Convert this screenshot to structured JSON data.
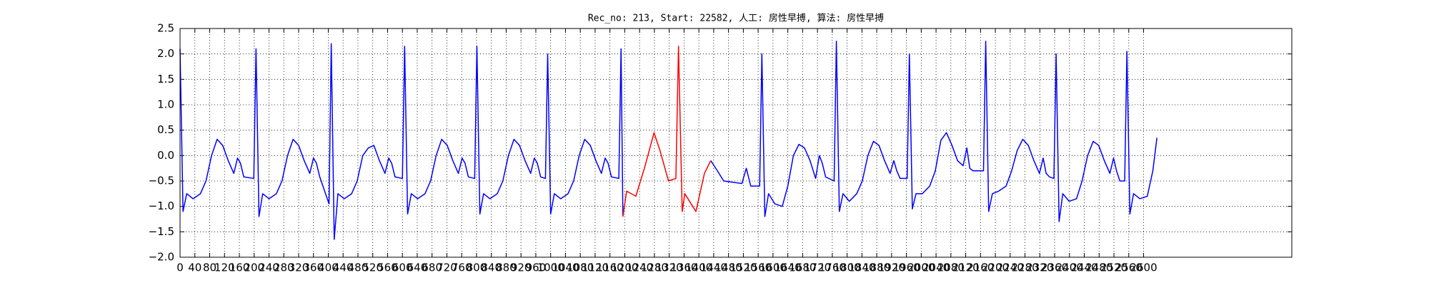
{
  "chart_data": {
    "type": "line",
    "title": "Rec_no: 213, Start: 22582, 人工: 房性早搏, 算法: 房性早搏",
    "xlim": [
      0,
      3000
    ],
    "ylim": [
      -2,
      2.5
    ],
    "grid": true,
    "xticks": [
      0,
      40,
      80,
      120,
      160,
      200,
      240,
      280,
      320,
      360,
      400,
      440,
      480,
      520,
      560,
      600,
      640,
      680,
      720,
      760,
      800,
      840,
      880,
      920,
      960,
      1000,
      1040,
      1080,
      1120,
      1160,
      1200,
      1240,
      1280,
      1320,
      1360,
      1400,
      1440,
      1480,
      1520,
      1560,
      1600,
      1640,
      1680,
      1720,
      1760,
      1800,
      1840,
      1880,
      1920,
      1960,
      2000,
      2040,
      2080,
      2120,
      2160,
      2200,
      2240,
      2280,
      2320,
      2360,
      2400,
      2440,
      2480,
      2520,
      2560,
      2600
    ],
    "yticks": [
      {
        "value": -2,
        "label": "−2.0"
      },
      {
        "value": -1.5,
        "label": "−1.5"
      },
      {
        "value": -1,
        "label": "−1.0"
      },
      {
        "value": -0.5,
        "label": "−0.5"
      },
      {
        "value": 0,
        "label": "0.0"
      },
      {
        "value": 0.5,
        "label": "0.5"
      },
      {
        "value": 1,
        "label": "1.0"
      },
      {
        "value": 1.5,
        "label": "1.5"
      },
      {
        "value": 2,
        "label": "2.0"
      },
      {
        "value": 2.5,
        "label": "2.5"
      }
    ],
    "series": [
      {
        "color": "#0000ff",
        "x": [
          0,
          8,
          18,
          35,
          55,
          70,
          85,
          100,
          115,
          130,
          145,
          155,
          163,
          172,
          199,
          205,
          213,
          223,
          240,
          260,
          275,
          290,
          305,
          320,
          335,
          350,
          360,
          368,
          377,
          402,
          408,
          416,
          426,
          443,
          463,
          478,
          493,
          508,
          523,
          538,
          553,
          563,
          571,
          580,
          600,
          606,
          614,
          624,
          641,
          661,
          676,
          691,
          706,
          721,
          736,
          751,
          761,
          769,
          778,
          795,
          801,
          809,
          819,
          836,
          856,
          871,
          886,
          901,
          916,
          931,
          946,
          956,
          964,
          973,
          986,
          992,
          1000,
          1010,
          1027,
          1047,
          1062,
          1077,
          1092,
          1107,
          1122,
          1137,
          1147,
          1155,
          1164,
          1184,
          1190,
          1195,
          1300,
          1432,
          1450,
          1467,
          1516,
          1528,
          1540,
          1564,
          1570,
          1578,
          1588,
          1605,
          1625,
          1640,
          1655,
          1670,
          1685,
          1700,
          1715,
          1725,
          1733,
          1742,
          1765,
          1771,
          1779,
          1789,
          1806,
          1826,
          1841,
          1856,
          1871,
          1886,
          1901,
          1916,
          1926,
          1934,
          1943,
          1962,
          1968,
          1976,
          1986,
          2003,
          2023,
          2038,
          2053,
          2068,
          2083,
          2098,
          2113,
          2123,
          2131,
          2140,
          2168,
          2174,
          2182,
          2192,
          2209,
          2229,
          2244,
          2259,
          2274,
          2289,
          2304,
          2319,
          2329,
          2337,
          2346,
          2358,
          2364,
          2372,
          2382,
          2399,
          2419,
          2434,
          2449,
          2464,
          2479,
          2494,
          2509,
          2519,
          2527,
          2536,
          2549,
          2555,
          2563,
          2573,
          2590,
          2610,
          2625,
          2636
        ],
        "values": [
          2.1,
          -1.1,
          -0.75,
          -0.85,
          -0.75,
          -0.5,
          0,
          0.32,
          0.2,
          -0.1,
          -0.35,
          -0.05,
          -0.15,
          -0.42,
          -0.45,
          2.1,
          -1.2,
          -0.75,
          -0.85,
          -0.75,
          -0.5,
          0,
          0.32,
          0.2,
          -0.1,
          -0.35,
          -0.05,
          -0.15,
          -0.42,
          -0.95,
          2.2,
          -1.65,
          -0.75,
          -0.85,
          -0.75,
          -0.5,
          0,
          0.15,
          0.2,
          -0.1,
          -0.35,
          -0.05,
          -0.15,
          -0.42,
          -0.45,
          2.15,
          -1.15,
          -0.75,
          -0.85,
          -0.75,
          -0.5,
          0,
          0.32,
          0.2,
          -0.1,
          -0.35,
          -0.05,
          -0.15,
          -0.42,
          -0.45,
          2.15,
          -1.15,
          -0.75,
          -0.85,
          -0.75,
          -0.5,
          0,
          0.32,
          0.2,
          -0.1,
          -0.35,
          -0.05,
          -0.15,
          -0.42,
          -0.45,
          2.0,
          -1.15,
          -0.75,
          -0.85,
          -0.75,
          -0.5,
          0,
          0.32,
          0.2,
          -0.1,
          -0.35,
          -0.05,
          -0.15,
          -0.42,
          -0.45,
          2.1,
          -1.2,
          null,
          -0.1,
          -0.3,
          -0.5,
          -0.55,
          -0.25,
          -0.6,
          -0.6,
          2.0,
          -1.2,
          -0.75,
          -0.95,
          -1.0,
          -0.6,
          0,
          0.22,
          0.15,
          -0.1,
          -0.45,
          0.0,
          -0.15,
          -0.42,
          -0.5,
          2.25,
          -1.1,
          -0.75,
          -0.9,
          -0.75,
          -0.5,
          0,
          0.28,
          0.2,
          -0.1,
          -0.35,
          -0.1,
          -0.3,
          -0.45,
          -0.45,
          2.0,
          -1.05,
          -0.75,
          -0.75,
          -0.6,
          -0.3,
          0.3,
          0.45,
          0.2,
          -0.1,
          -0.2,
          0.15,
          -0.25,
          -0.3,
          -0.3,
          2.25,
          -1.1,
          -0.75,
          -0.7,
          -0.6,
          -0.3,
          0.1,
          0.32,
          0.2,
          -0.1,
          -0.35,
          -0.05,
          -0.35,
          -0.42,
          -0.45,
          2.0,
          -1.3,
          -0.75,
          -0.9,
          -0.85,
          -0.5,
          0,
          0.28,
          0.2,
          -0.1,
          -0.35,
          -0.05,
          -0.3,
          -0.5,
          -0.5,
          2.05,
          -1.15,
          -0.75,
          -0.85,
          -0.8,
          -0.3,
          0.35
        ]
      },
      {
        "color": "#ff0000",
        "x": [
          1195,
          1205,
          1230,
          1255,
          1279,
          1295,
          1318,
          1338,
          1345,
          1355,
          1362,
          1392,
          1415,
          1432
        ],
        "values": [
          -1.2,
          -0.7,
          -0.8,
          -0.2,
          0.45,
          0.1,
          -0.5,
          -0.45,
          2.15,
          -1.1,
          -0.75,
          -1.1,
          -0.35,
          -0.1
        ]
      }
    ]
  }
}
